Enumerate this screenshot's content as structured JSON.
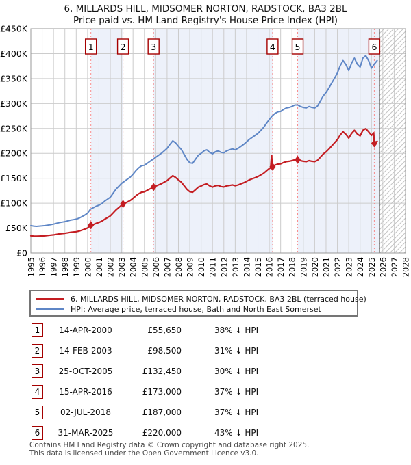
{
  "title": {
    "line1": "6, MILLARDS HILL, MIDSOMER NORTON, RADSTOCK, BA3 2BL",
    "line2": "Price paid vs. HM Land Registry's House Price Index (HPI)"
  },
  "chart_data": {
    "type": "line",
    "value_units": "GBP thousands",
    "x_axis": {
      "start": 1995,
      "end": 2028,
      "tick_step": 1
    },
    "y_axis": {
      "min": 0,
      "max": 450,
      "tick_step": 50,
      "tick_labels": [
        "£0",
        "£50K",
        "£100K",
        "£150K",
        "£200K",
        "£250K",
        "£300K",
        "£350K",
        "£400K",
        "£450K"
      ]
    },
    "bands": [
      [
        2000.29,
        2003.12
      ],
      [
        2005.81,
        2016.29
      ],
      [
        2018.5,
        2025.7
      ]
    ],
    "future_start": 2025.7,
    "colors": {
      "price": "#c41d22",
      "hpi": "#5e86c6",
      "band": "#edf1fa",
      "grid": "#cccccc",
      "frame": "#999999",
      "sale_line": "#f88a8a",
      "future_line": "#555555",
      "hatch": "#c4c4c4",
      "marker_box_border": "#a50000"
    },
    "series": [
      {
        "name": "hpi",
        "color_key": "hpi",
        "width": 2,
        "points": [
          [
            1995,
            55
          ],
          [
            1995.25,
            54
          ],
          [
            1995.5,
            53.5
          ],
          [
            1995.75,
            54
          ],
          [
            1996,
            54.5
          ],
          [
            1996.25,
            55
          ],
          [
            1996.5,
            56
          ],
          [
            1996.75,
            57
          ],
          [
            1997,
            58
          ],
          [
            1997.25,
            59.5
          ],
          [
            1997.5,
            61
          ],
          [
            1997.75,
            62
          ],
          [
            1998,
            63
          ],
          [
            1998.25,
            64.5
          ],
          [
            1998.5,
            66
          ],
          [
            1998.75,
            67
          ],
          [
            1999,
            68
          ],
          [
            1999.25,
            70
          ],
          [
            1999.5,
            73
          ],
          [
            1999.75,
            76
          ],
          [
            2000,
            80
          ],
          [
            2000.25,
            88
          ],
          [
            2000.5,
            91
          ],
          [
            2000.75,
            94
          ],
          [
            2001,
            96
          ],
          [
            2001.25,
            99
          ],
          [
            2001.5,
            104
          ],
          [
            2001.75,
            108
          ],
          [
            2002,
            112
          ],
          [
            2002.25,
            120
          ],
          [
            2002.5,
            128
          ],
          [
            2002.75,
            134
          ],
          [
            2003,
            140
          ],
          [
            2003.25,
            144
          ],
          [
            2003.5,
            148
          ],
          [
            2003.75,
            152
          ],
          [
            2004,
            158
          ],
          [
            2004.25,
            165
          ],
          [
            2004.5,
            171
          ],
          [
            2004.75,
            175
          ],
          [
            2005,
            176
          ],
          [
            2005.25,
            180
          ],
          [
            2005.5,
            184
          ],
          [
            2005.75,
            188
          ],
          [
            2006,
            192
          ],
          [
            2006.25,
            196
          ],
          [
            2006.5,
            200
          ],
          [
            2006.75,
            205
          ],
          [
            2007,
            210
          ],
          [
            2007.25,
            218
          ],
          [
            2007.5,
            225
          ],
          [
            2007.75,
            221
          ],
          [
            2008,
            214
          ],
          [
            2008.25,
            208
          ],
          [
            2008.5,
            198
          ],
          [
            2008.75,
            188
          ],
          [
            2009,
            181
          ],
          [
            2009.25,
            180
          ],
          [
            2009.5,
            188
          ],
          [
            2009.75,
            196
          ],
          [
            2010,
            200
          ],
          [
            2010.25,
            205
          ],
          [
            2010.5,
            207
          ],
          [
            2010.75,
            202
          ],
          [
            2011,
            199
          ],
          [
            2011.25,
            203
          ],
          [
            2011.5,
            205
          ],
          [
            2011.75,
            202
          ],
          [
            2012,
            201
          ],
          [
            2012.25,
            205
          ],
          [
            2012.5,
            207
          ],
          [
            2012.75,
            209
          ],
          [
            2013,
            207
          ],
          [
            2013.25,
            210
          ],
          [
            2013.5,
            214
          ],
          [
            2013.75,
            218
          ],
          [
            2014,
            223
          ],
          [
            2014.25,
            228
          ],
          [
            2014.5,
            232
          ],
          [
            2014.75,
            236
          ],
          [
            2015,
            240
          ],
          [
            2015.25,
            246
          ],
          [
            2015.5,
            252
          ],
          [
            2015.75,
            260
          ],
          [
            2016,
            268
          ],
          [
            2016.25,
            275
          ],
          [
            2016.5,
            280
          ],
          [
            2016.75,
            283
          ],
          [
            2017,
            284
          ],
          [
            2017.25,
            288
          ],
          [
            2017.5,
            291
          ],
          [
            2017.75,
            292
          ],
          [
            2018,
            294
          ],
          [
            2018.25,
            297
          ],
          [
            2018.5,
            297
          ],
          [
            2018.75,
            294
          ],
          [
            2019,
            292
          ],
          [
            2019.25,
            291
          ],
          [
            2019.5,
            294
          ],
          [
            2019.75,
            292
          ],
          [
            2020,
            291
          ],
          [
            2020.25,
            295
          ],
          [
            2020.5,
            305
          ],
          [
            2020.75,
            315
          ],
          [
            2021,
            322
          ],
          [
            2021.25,
            331
          ],
          [
            2021.5,
            341
          ],
          [
            2021.75,
            351
          ],
          [
            2022,
            361
          ],
          [
            2022.25,
            376
          ],
          [
            2022.5,
            386
          ],
          [
            2022.75,
            378
          ],
          [
            2023,
            366
          ],
          [
            2023.25,
            381
          ],
          [
            2023.5,
            391
          ],
          [
            2023.75,
            379
          ],
          [
            2024,
            373
          ],
          [
            2024.25,
            391
          ],
          [
            2024.5,
            396
          ],
          [
            2024.75,
            386
          ],
          [
            2025,
            371
          ],
          [
            2025.25,
            379
          ],
          [
            2025.5,
            386
          ]
        ]
      },
      {
        "name": "price-paid",
        "color_key": "price",
        "width": 2.2,
        "points": [
          [
            1995,
            34.6
          ],
          [
            1995.25,
            34
          ],
          [
            1995.5,
            33.7
          ],
          [
            1995.75,
            34
          ],
          [
            1996,
            34.3
          ],
          [
            1996.25,
            34.6
          ],
          [
            1996.5,
            35.3
          ],
          [
            1996.75,
            35.9
          ],
          [
            1997,
            36.5
          ],
          [
            1997.25,
            37.5
          ],
          [
            1997.5,
            38.4
          ],
          [
            1997.75,
            39.1
          ],
          [
            1998,
            39.7
          ],
          [
            1998.25,
            40.6
          ],
          [
            1998.5,
            41.6
          ],
          [
            1998.75,
            42.2
          ],
          [
            1999,
            42.8
          ],
          [
            1999.25,
            44.1
          ],
          [
            1999.5,
            46
          ],
          [
            1999.75,
            47.9
          ],
          [
            2000,
            50.4
          ],
          [
            2000.29,
            55.65
          ],
          [
            2000.5,
            57.1
          ],
          [
            2000.75,
            59.5
          ],
          [
            2001,
            61.3
          ],
          [
            2001.25,
            63.9
          ],
          [
            2001.5,
            67.7
          ],
          [
            2001.75,
            71
          ],
          [
            2002,
            74.3
          ],
          [
            2002.25,
            80.4
          ],
          [
            2002.5,
            86.5
          ],
          [
            2002.75,
            91.4
          ],
          [
            2003,
            96.3
          ],
          [
            2003.12,
            98.5
          ],
          [
            2003.25,
            99.4
          ],
          [
            2003.5,
            102.4
          ],
          [
            2003.75,
            105.3
          ],
          [
            2004,
            109.7
          ],
          [
            2004.25,
            114.7
          ],
          [
            2004.5,
            119
          ],
          [
            2004.75,
            122
          ],
          [
            2005,
            122.8
          ],
          [
            2005.25,
            125.8
          ],
          [
            2005.5,
            128.7
          ],
          [
            2005.81,
            132.45
          ],
          [
            2006,
            134.2
          ],
          [
            2006.25,
            136.6
          ],
          [
            2006.5,
            139
          ],
          [
            2006.75,
            142.3
          ],
          [
            2007,
            145.3
          ],
          [
            2007.25,
            150.4
          ],
          [
            2007.5,
            155
          ],
          [
            2007.75,
            151.8
          ],
          [
            2008,
            146.6
          ],
          [
            2008.25,
            142.3
          ],
          [
            2008.5,
            135
          ],
          [
            2008.75,
            127.8
          ],
          [
            2009,
            122.9
          ],
          [
            2009.25,
            121.9
          ],
          [
            2009.5,
            126.9
          ],
          [
            2009.75,
            132.1
          ],
          [
            2010,
            134.4
          ],
          [
            2010.25,
            137.4
          ],
          [
            2010.5,
            138.5
          ],
          [
            2010.75,
            134.7
          ],
          [
            2011,
            132.3
          ],
          [
            2011.25,
            134.8
          ],
          [
            2011.5,
            135.7
          ],
          [
            2011.75,
            133.3
          ],
          [
            2012,
            132.5
          ],
          [
            2012.25,
            134.7
          ],
          [
            2012.5,
            135.6
          ],
          [
            2012.75,
            136.7
          ],
          [
            2013,
            135
          ],
          [
            2013.25,
            136.5
          ],
          [
            2013.5,
            138.9
          ],
          [
            2013.75,
            141
          ],
          [
            2014,
            143.8
          ],
          [
            2014.25,
            146.8
          ],
          [
            2014.5,
            149
          ],
          [
            2014.75,
            151
          ],
          [
            2015,
            153.4
          ],
          [
            2015.25,
            156.7
          ],
          [
            2015.5,
            160
          ],
          [
            2015.75,
            164.8
          ],
          [
            2016,
            169.4
          ],
          [
            2016.12,
            171
          ],
          [
            2016.2,
            196
          ],
          [
            2016.29,
            173
          ],
          [
            2016.5,
            176.4
          ],
          [
            2016.75,
            178.3
          ],
          [
            2017,
            178.9
          ],
          [
            2017.25,
            181.4
          ],
          [
            2017.5,
            183.3
          ],
          [
            2017.75,
            184
          ],
          [
            2018,
            185.2
          ],
          [
            2018.25,
            187.1
          ],
          [
            2018.5,
            187
          ],
          [
            2018.75,
            185.2
          ],
          [
            2019,
            184
          ],
          [
            2019.25,
            183.3
          ],
          [
            2019.5,
            185.2
          ],
          [
            2019.75,
            184
          ],
          [
            2020,
            183.3
          ],
          [
            2020.25,
            185.9
          ],
          [
            2020.5,
            192.2
          ],
          [
            2020.75,
            198.5
          ],
          [
            2021,
            202.9
          ],
          [
            2021.25,
            208.5
          ],
          [
            2021.5,
            214.8
          ],
          [
            2021.75,
            221.1
          ],
          [
            2022,
            227.4
          ],
          [
            2022.25,
            236.9
          ],
          [
            2022.5,
            243.2
          ],
          [
            2022.75,
            238.1
          ],
          [
            2023,
            230.6
          ],
          [
            2023.25,
            240
          ],
          [
            2023.5,
            246.3
          ],
          [
            2023.75,
            238.8
          ],
          [
            2024,
            235
          ],
          [
            2024.25,
            246.3
          ],
          [
            2024.5,
            249.5
          ],
          [
            2024.75,
            243.2
          ],
          [
            2025,
            236
          ],
          [
            2025.2,
            241
          ],
          [
            2025.25,
            220
          ],
          [
            2025.5,
            224
          ]
        ]
      }
    ],
    "sales": [
      {
        "n": "1",
        "year": 2000.29,
        "price_k": 55.65
      },
      {
        "n": "2",
        "year": 2003.12,
        "price_k": 98.5
      },
      {
        "n": "3",
        "year": 2005.81,
        "price_k": 132.45
      },
      {
        "n": "4",
        "year": 2016.29,
        "price_k": 173
      },
      {
        "n": "5",
        "year": 2018.5,
        "price_k": 187
      },
      {
        "n": "6",
        "year": 2025.25,
        "price_k": 220
      }
    ]
  },
  "legend": {
    "items": [
      {
        "label": "6, MILLARDS HILL, MIDSOMER NORTON, RADSTOCK, BA3 2BL (terraced house)",
        "color_key": "price"
      },
      {
        "label": "HPI: Average price, terraced house, Bath and North East Somerset",
        "color_key": "hpi"
      }
    ]
  },
  "table": {
    "rows": [
      {
        "num": "1",
        "date": "14-APR-2000",
        "price": "£55,650",
        "vs_hpi": "38% ↓ HPI"
      },
      {
        "num": "2",
        "date": "14-FEB-2003",
        "price": "£98,500",
        "vs_hpi": "31% ↓ HPI"
      },
      {
        "num": "3",
        "date": "25-OCT-2005",
        "price": "£132,450",
        "vs_hpi": "30% ↓ HPI"
      },
      {
        "num": "4",
        "date": "15-APR-2016",
        "price": "£173,000",
        "vs_hpi": "37% ↓ HPI"
      },
      {
        "num": "5",
        "date": "02-JUL-2018",
        "price": "£187,000",
        "vs_hpi": "37% ↓ HPI"
      },
      {
        "num": "6",
        "date": "31-MAR-2025",
        "price": "£220,000",
        "vs_hpi": "43% ↓ HPI"
      }
    ]
  },
  "footer": {
    "line1": "Contains HM Land Registry data © Crown copyright and database right 2025.",
    "line2": "This data is licensed under the Open Government Licence v3.0."
  }
}
